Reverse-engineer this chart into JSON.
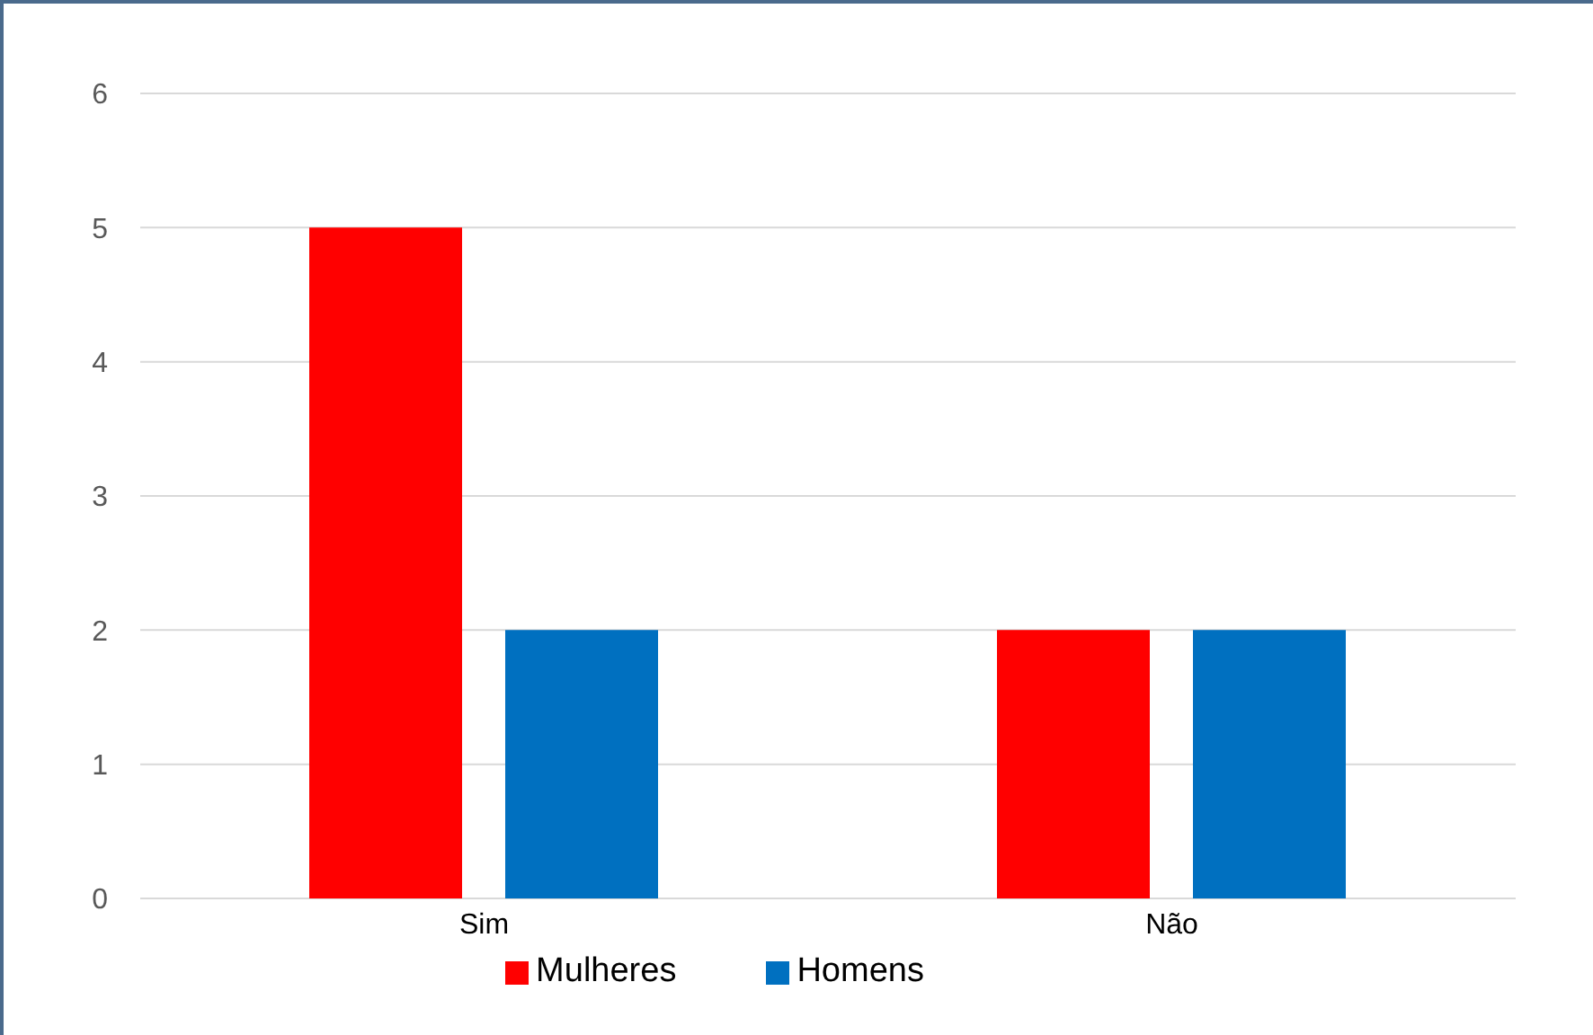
{
  "chart_data": {
    "type": "bar",
    "categories": [
      "Sim",
      "Não"
    ],
    "series": [
      {
        "name": "Mulheres",
        "color": "#ff0000",
        "values": [
          5,
          2
        ]
      },
      {
        "name": "Homens",
        "color": "#0070c0",
        "values": [
          2,
          2
        ]
      }
    ],
    "ylim": [
      0,
      6
    ],
    "yticks": [
      0,
      1,
      2,
      3,
      4,
      5,
      6
    ],
    "grid": "y",
    "legend": "bottom"
  }
}
